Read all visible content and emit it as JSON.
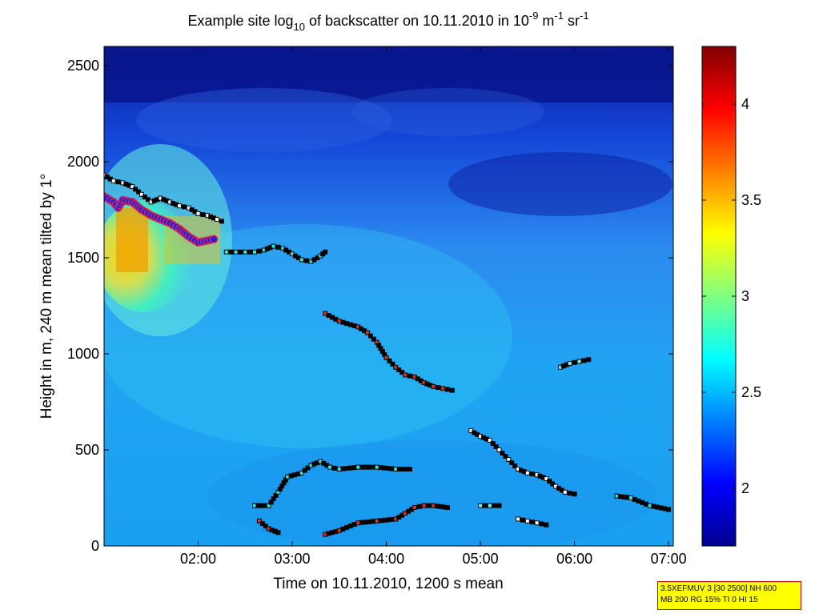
{
  "chart_data": {
    "type": "heatmap",
    "title_parts": [
      "Example site log",
      "10",
      " of backscatter on 10.11.2010 in 10",
      "-9",
      " m",
      "-1",
      " sr",
      "-1"
    ],
    "xlabel": "Time on 10.11.2010, 1200 s mean",
    "ylabel": "Height in m, 240 m mean tilted by 1°",
    "x_range_hours": [
      1.0,
      7.05
    ],
    "x_ticks": [
      {
        "value": 2,
        "label": "02:00"
      },
      {
        "value": 3,
        "label": "03:00"
      },
      {
        "value": 4,
        "label": "04:00"
      },
      {
        "value": 5,
        "label": "05:00"
      },
      {
        "value": 6,
        "label": "06:00"
      },
      {
        "value": 7,
        "label": "07:00"
      }
    ],
    "y_range": [
      0,
      2600
    ],
    "y_ticks": [
      0,
      500,
      1000,
      1500,
      2000,
      2500
    ],
    "colorbar": {
      "colormap": "jet",
      "range": [
        1.7,
        4.3
      ],
      "ticks": [
        {
          "value": 2,
          "label": "2"
        },
        {
          "value": 2.5,
          "label": "2.5"
        },
        {
          "value": 3,
          "label": "3"
        },
        {
          "value": 3.5,
          "label": "3.5"
        },
        {
          "value": 4,
          "label": "4"
        }
      ]
    },
    "layer_tracks": [
      {
        "name": "",
        "points": [
          [
            1.0,
            1930
          ],
          [
            1.1,
            1900
          ],
          [
            1.2,
            1890
          ],
          [
            1.3,
            1870
          ],
          [
            1.4,
            1830
          ],
          [
            1.5,
            1790
          ],
          [
            1.6,
            1810
          ],
          [
            1.7,
            1790
          ],
          [
            1.8,
            1770
          ],
          [
            1.9,
            1760
          ],
          [
            2.0,
            1730
          ],
          [
            2.1,
            1720
          ],
          [
            2.2,
            1700
          ],
          [
            2.25,
            1690
          ]
        ]
      },
      {
        "name": "",
        "points": [
          [
            2.3,
            1530
          ],
          [
            2.4,
            1530
          ],
          [
            2.5,
            1530
          ],
          [
            2.6,
            1530
          ],
          [
            2.7,
            1540
          ],
          [
            2.8,
            1560
          ],
          [
            2.9,
            1550
          ],
          [
            3.0,
            1520
          ],
          [
            3.1,
            1490
          ],
          [
            3.2,
            1480
          ],
          [
            3.3,
            1510
          ],
          [
            3.35,
            1530
          ]
        ]
      },
      {
        "name": "",
        "points": [
          [
            3.35,
            1210
          ],
          [
            3.5,
            1170
          ],
          [
            3.7,
            1140
          ],
          [
            3.8,
            1110
          ],
          [
            3.9,
            1060
          ],
          [
            4.0,
            980
          ],
          [
            4.1,
            930
          ],
          [
            4.2,
            890
          ],
          [
            4.3,
            880
          ],
          [
            4.4,
            850
          ],
          [
            4.5,
            830
          ],
          [
            4.6,
            820
          ],
          [
            4.7,
            810
          ]
        ]
      },
      {
        "name": "",
        "points": [
          [
            5.85,
            930
          ],
          [
            5.95,
            950
          ],
          [
            6.05,
            960
          ],
          [
            6.15,
            970
          ]
        ]
      },
      {
        "name": "",
        "points": [
          [
            4.9,
            600
          ],
          [
            5.0,
            570
          ],
          [
            5.1,
            550
          ],
          [
            5.2,
            500
          ],
          [
            5.3,
            450
          ],
          [
            5.4,
            400
          ],
          [
            5.5,
            380
          ],
          [
            5.6,
            370
          ],
          [
            5.7,
            350
          ],
          [
            5.8,
            310
          ],
          [
            5.9,
            280
          ],
          [
            6.0,
            270
          ]
        ]
      },
      {
        "name": "",
        "points": [
          [
            2.6,
            210
          ],
          [
            2.75,
            210
          ],
          [
            2.85,
            280
          ],
          [
            2.95,
            360
          ],
          [
            3.1,
            380
          ],
          [
            3.2,
            420
          ],
          [
            3.3,
            440
          ],
          [
            3.4,
            410
          ],
          [
            3.5,
            400
          ],
          [
            3.7,
            410
          ],
          [
            3.9,
            410
          ],
          [
            4.1,
            400
          ],
          [
            4.25,
            400
          ]
        ]
      },
      {
        "name": "",
        "points": [
          [
            3.35,
            60
          ],
          [
            3.5,
            80
          ],
          [
            3.7,
            120
          ],
          [
            3.9,
            130
          ],
          [
            4.1,
            140
          ],
          [
            4.2,
            170
          ],
          [
            4.3,
            200
          ],
          [
            4.4,
            210
          ],
          [
            4.5,
            210
          ],
          [
            4.65,
            200
          ]
        ]
      },
      {
        "name": "",
        "points": [
          [
            5.0,
            210
          ],
          [
            5.1,
            210
          ],
          [
            5.2,
            210
          ]
        ]
      },
      {
        "name": "",
        "points": [
          [
            5.4,
            140
          ],
          [
            5.5,
            130
          ],
          [
            5.6,
            120
          ],
          [
            5.7,
            110
          ]
        ]
      },
      {
        "name": "",
        "points": [
          [
            6.45,
            260
          ],
          [
            6.6,
            250
          ],
          [
            6.8,
            210
          ],
          [
            7.0,
            190
          ]
        ]
      },
      {
        "name": "",
        "points": [
          [
            2.65,
            130
          ],
          [
            2.75,
            90
          ],
          [
            2.85,
            70
          ]
        ]
      }
    ],
    "cloud_base_points": [
      [
        1.0,
        1820
      ],
      [
        1.1,
        1790
      ],
      [
        1.15,
        1760
      ],
      [
        1.2,
        1800
      ],
      [
        1.3,
        1790
      ],
      [
        1.4,
        1750
      ],
      [
        1.5,
        1720
      ],
      [
        1.6,
        1700
      ],
      [
        1.7,
        1680
      ],
      [
        1.8,
        1650
      ],
      [
        1.9,
        1610
      ],
      [
        2.0,
        1580
      ],
      [
        2.1,
        1590
      ],
      [
        2.2,
        1600
      ]
    ]
  },
  "info_box": {
    "line1": "3.5XEFMUV 3 [30 2500] NH 600",
    "line2": "MB 200 RG 15% TI 0 HI 15"
  }
}
